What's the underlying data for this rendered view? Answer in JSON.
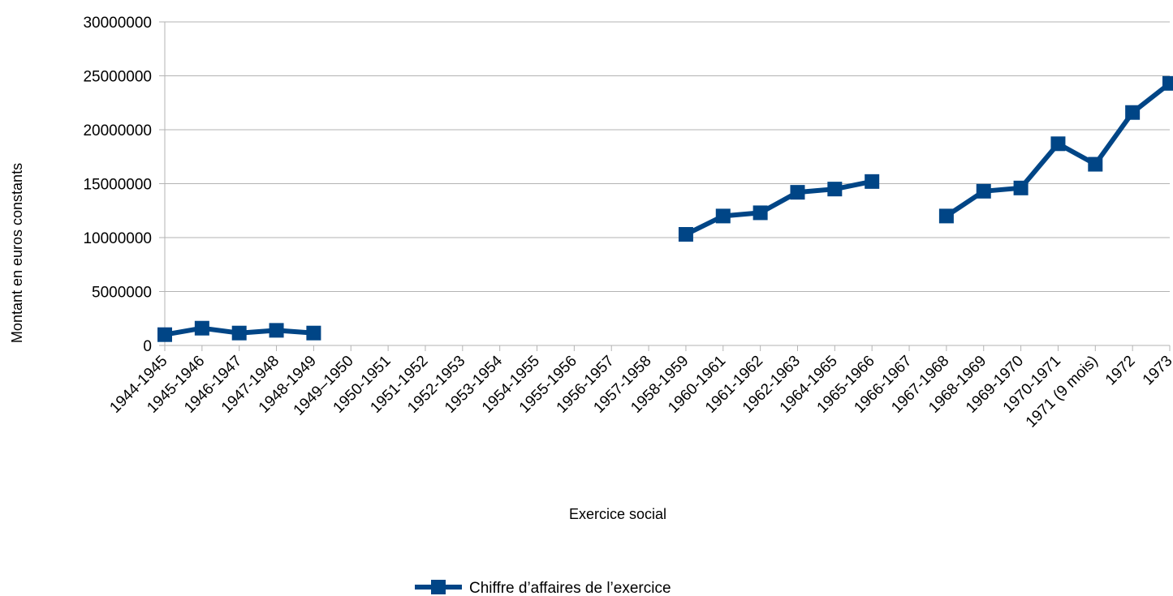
{
  "chart_data": {
    "type": "line",
    "title": "",
    "xlabel": "Exercice social",
    "ylabel": "Montant en euros constants",
    "ylim": [
      0,
      30000000
    ],
    "yticks": [
      0,
      5000000,
      10000000,
      15000000,
      20000000,
      25000000,
      30000000
    ],
    "ytick_labels": [
      "0",
      "5000000",
      "10000000",
      "15000000",
      "20000000",
      "25000000",
      "30000000"
    ],
    "grid": "horizontal",
    "legend_position": "bottom",
    "categories": [
      "1944-1945",
      "1945-1946",
      "1946-1947",
      "1947-1948",
      "1948-1949",
      "1949–1950",
      "1950-1951",
      "1951-1952",
      "1952-1953",
      "1953-1954",
      "1954-1955",
      "1955-1956",
      "1956-1957",
      "1957-1958",
      "1958-1959",
      "1960-1961",
      "1961-1962",
      "1962-1963",
      "1964-1965",
      "1965-1966",
      "1966-1967",
      "1967-1968",
      "1968-1969",
      "1969-1970",
      "1970-1971",
      "1971 (9 mois)",
      "1972",
      "1973"
    ],
    "series": [
      {
        "name": "Chiffre d’affaires de l’exercice",
        "color": "#004586",
        "marker": "square",
        "values": [
          1000000,
          1600000,
          1150000,
          1400000,
          1150000,
          null,
          null,
          null,
          null,
          null,
          null,
          null,
          null,
          null,
          10300000,
          12000000,
          12300000,
          14200000,
          14500000,
          15200000,
          null,
          12000000,
          14300000,
          14600000,
          18700000,
          16800000,
          21600000,
          24300000
        ]
      }
    ]
  }
}
